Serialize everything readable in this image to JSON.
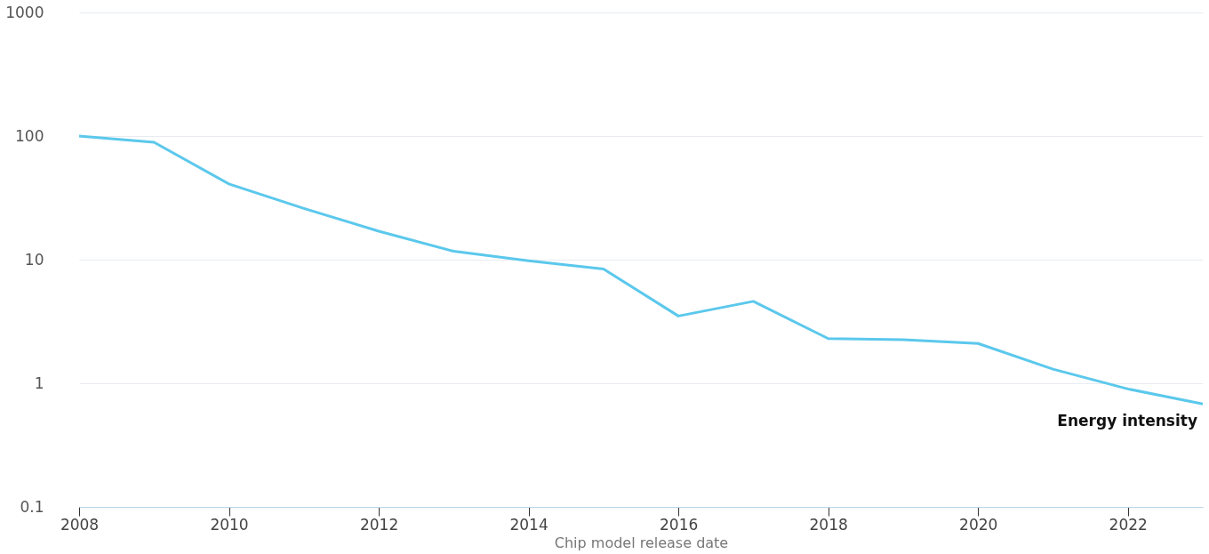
{
  "chart_data": {
    "type": "line",
    "xlabel": "Chip model release date",
    "x": [
      2008,
      2009,
      2010,
      2011,
      2012,
      2013,
      2014,
      2015,
      2016,
      2017,
      2018,
      2019,
      2020,
      2021,
      2022,
      2023
    ],
    "series": [
      {
        "color": "#5bc8ec",
        "values": [
          100,
          89,
          41,
          26,
          17,
          11.7,
          9.8,
          8.4,
          3.5,
          4.6,
          2.3,
          2.25,
          2.1,
          1.3,
          0.9,
          0.68
        ]
      }
    ],
    "annotations": [
      {
        "text": "Energy intensity",
        "x": 2023,
        "y": 0.68
      }
    ],
    "log": "y",
    "ylim": [
      0.1,
      1000
    ],
    "yticks": [
      0.1,
      1,
      10,
      100,
      1000
    ],
    "xlim": [
      2008,
      2023
    ],
    "xticks": [
      2008,
      2010,
      2012,
      2014,
      2016,
      2018,
      2020,
      2022
    ],
    "grid": "y",
    "legend": false,
    "marker": "none",
    "line_style": "solid"
  }
}
